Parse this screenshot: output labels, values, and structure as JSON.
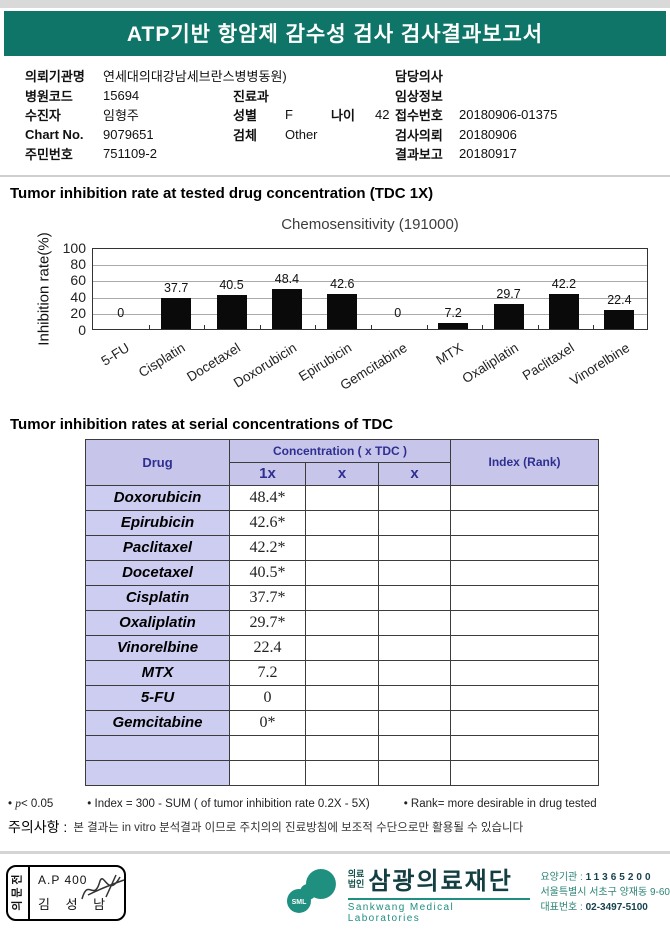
{
  "banner": {
    "title": "ATP기반 항암제 감수성 검사 검사결과보고서"
  },
  "patient": {
    "org_label": "의뢰기관명",
    "org": "연세대의대강남세브란스병병동원)",
    "hospital_code_label": "병원코드",
    "hospital_code": "15694",
    "patient_label": "수진자",
    "patient_name": "임형주",
    "chart_no_label": "Chart No.",
    "chart_no": "9079651",
    "resident_no_label": "주민번호",
    "resident_no": "751109-2",
    "dept_label": "진료과",
    "dept": "",
    "sex_label": "성별",
    "sex": "F",
    "age_label": "나이",
    "age": "42",
    "specimen_label": "검체",
    "specimen": "Other",
    "doctor_label": "담당의사",
    "doctor": "",
    "clinical_label": "임상정보",
    "clinical": "",
    "receipt_label": "접수번호",
    "receipt_no": "20180906-01375",
    "request_label": "검사의뢰",
    "request_date": "20180906",
    "report_label": "결과보고",
    "report_date": "20180917"
  },
  "section1_title": "Tumor inhibition rate at tested drug concentration (TDC 1X)",
  "chart_data": {
    "type": "bar",
    "title": "Chemosensitivity (191000)",
    "ylabel": "Inhibition rate(%)",
    "ylim": [
      0,
      100
    ],
    "yticks": [
      100,
      80,
      60,
      40,
      20,
      0
    ],
    "grid": true,
    "bar_color": "#0a0a0a",
    "categories": [
      "5-FU",
      "Cisplatin",
      "Docetaxel",
      "Doxorubicin",
      "Epirubicin",
      "Gemcitabine",
      "MTX",
      "Oxaliplatin",
      "Paclitaxel",
      "Vinorelbine"
    ],
    "values": [
      0,
      37.7,
      40.5,
      48.4,
      42.6,
      0,
      7.2,
      29.7,
      42.2,
      22.4
    ]
  },
  "results_table": {
    "section_title": "Tumor inhibition rates at serial concentrations of TDC",
    "col_drug": "Drug",
    "col_concentration": "Concentration ( x TDC )",
    "sub_cols": [
      "1x",
      "x",
      "x"
    ],
    "col_index": "Index (Rank)",
    "rows": [
      {
        "drug": "Doxorubicin",
        "c1": "48.4*",
        "c2": "",
        "c3": "",
        "index": ""
      },
      {
        "drug": "Epirubicin",
        "c1": "42.6*",
        "c2": "",
        "c3": "",
        "index": ""
      },
      {
        "drug": "Paclitaxel",
        "c1": "42.2*",
        "c2": "",
        "c3": "",
        "index": ""
      },
      {
        "drug": "Docetaxel",
        "c1": "40.5*",
        "c2": "",
        "c3": "",
        "index": ""
      },
      {
        "drug": "Cisplatin",
        "c1": "37.7*",
        "c2": "",
        "c3": "",
        "index": ""
      },
      {
        "drug": "Oxaliplatin",
        "c1": "29.7*",
        "c2": "",
        "c3": "",
        "index": ""
      },
      {
        "drug": "Vinorelbine",
        "c1": "22.4",
        "c2": "",
        "c3": "",
        "index": ""
      },
      {
        "drug": "MTX",
        "c1": "7.2",
        "c2": "",
        "c3": "",
        "index": ""
      },
      {
        "drug": "5-FU",
        "c1": "0",
        "c2": "",
        "c3": "",
        "index": ""
      },
      {
        "drug": "Gemcitabine",
        "c1": "0*",
        "c2": "",
        "c3": "",
        "index": ""
      },
      {
        "drug": "",
        "c1": "",
        "c2": "",
        "c3": "",
        "index": ""
      },
      {
        "drug": "",
        "c1": "",
        "c2": "",
        "c3": "",
        "index": ""
      }
    ]
  },
  "footnotes": {
    "p_italic": "p",
    "p_rest": "< 0.05",
    "index_def": "Index = 300 - SUM ( of tumor inhibition rate 0.2X  -  5X)",
    "rank_def": "Rank= more desirable in drug tested",
    "bullet": "•",
    "caution_label": "주의사항 :",
    "caution_text": "본 결과는 in vitro 분석결과 이므로 주치의의 진료방침에 보조적 수단으로만 활용될 수 있습니다"
  },
  "footer": {
    "stamp": {
      "side_label": "전문의",
      "code": "A.P 400",
      "name": "김 성 남"
    },
    "logo": {
      "sml": "SML",
      "org_type_1": "의료",
      "org_type_2": "법인",
      "name": "삼광의료재단",
      "name_en": "Sankwang Medical Laboratories",
      "teal": "#1f8f80"
    },
    "info": {
      "care_org_label": "요양기관 :",
      "care_org": "11365200",
      "address": "서울특별시 서초구 양재동 9-60",
      "phone_label": "대표번호 :",
      "phone": "02-3497-5100"
    }
  }
}
